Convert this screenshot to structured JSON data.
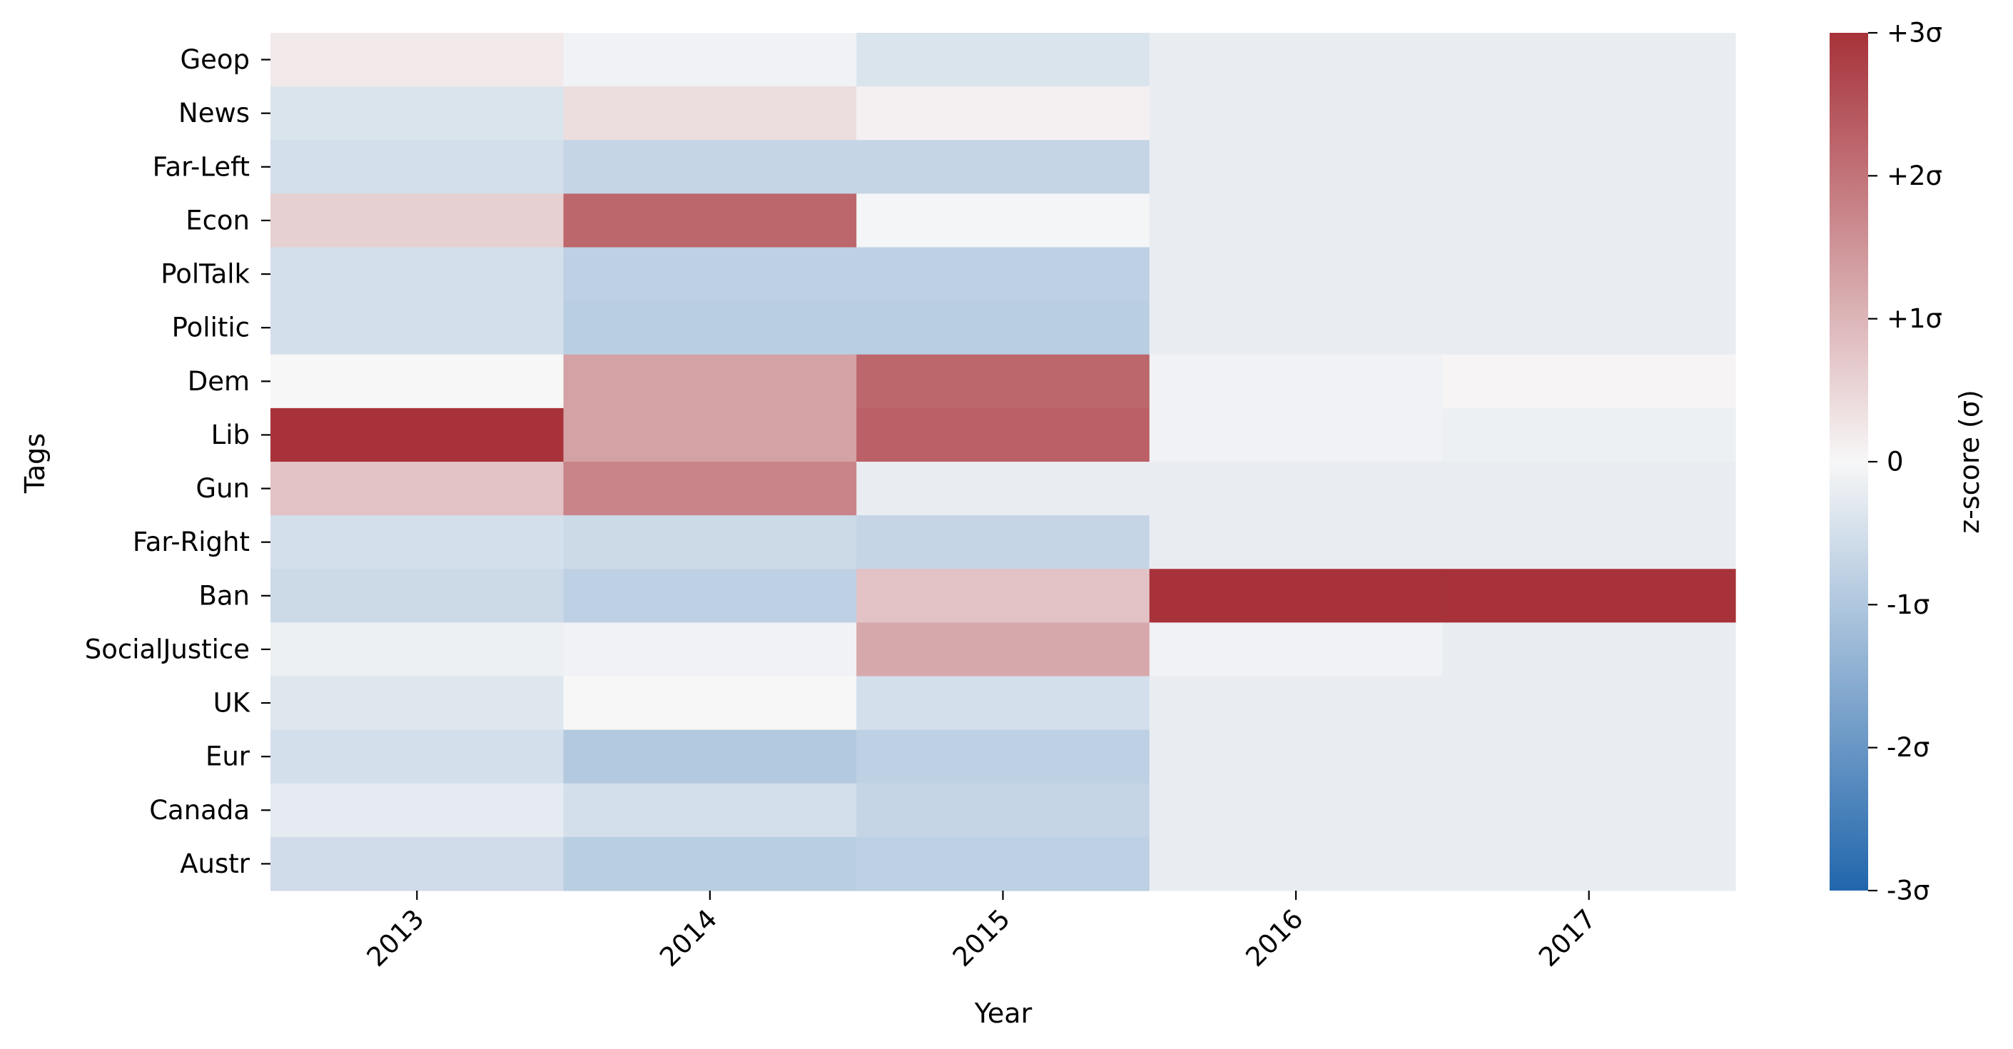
{
  "chart_data": {
    "type": "heatmap",
    "xlabel": "Year",
    "ylabel": "Tags",
    "x": [
      "2013",
      "2014",
      "2015",
      "2016",
      "2017"
    ],
    "y": [
      "Geop",
      "News",
      "Far-Left",
      "Econ",
      "PolTalk",
      "Politic",
      "Dem",
      "Lib",
      "Gun",
      "Far-Right",
      "Ban",
      "SocialJustice",
      "UK",
      "Eur",
      "Canada",
      "Austr"
    ],
    "z": [
      [
        0.2,
        -0.1,
        -0.4,
        -0.2,
        -0.2
      ],
      [
        -0.4,
        0.4,
        0.1,
        -0.2,
        -0.2
      ],
      [
        -0.5,
        -0.7,
        -0.7,
        -0.2,
        -0.2
      ],
      [
        0.6,
        2.2,
        -0.05,
        -0.2,
        -0.2
      ],
      [
        -0.5,
        -0.8,
        -0.8,
        -0.2,
        -0.2
      ],
      [
        -0.5,
        -0.85,
        -0.85,
        -0.2,
        -0.2
      ],
      [
        0.0,
        1.3,
        2.2,
        -0.1,
        0.05
      ],
      [
        3.0,
        1.3,
        2.3,
        -0.1,
        -0.15
      ],
      [
        0.8,
        1.75,
        -0.2,
        -0.2,
        -0.2
      ],
      [
        -0.5,
        -0.6,
        -0.7,
        -0.2,
        -0.2
      ],
      [
        -0.6,
        -0.8,
        0.8,
        3.0,
        3.0
      ],
      [
        -0.15,
        -0.1,
        1.2,
        -0.1,
        -0.2
      ],
      [
        -0.35,
        0.0,
        -0.5,
        -0.2,
        -0.2
      ],
      [
        -0.5,
        -0.95,
        -0.8,
        -0.2,
        -0.2
      ],
      [
        -0.25,
        -0.5,
        -0.7,
        -0.2,
        -0.2
      ],
      [
        -0.55,
        -0.85,
        -0.8,
        -0.2,
        -0.2
      ]
    ],
    "zlim": [
      -3,
      3
    ],
    "colormap": "diverging blue-white-red",
    "colors": {
      "low": "#2166ac",
      "mid": "#f7f7f7",
      "high": "#a7323a"
    },
    "colorbar": {
      "label": "z-score (σ)",
      "ticks": [
        3,
        2,
        1,
        0,
        -1,
        -2,
        -3
      ],
      "tick_labels": [
        "+3σ",
        "+2σ",
        "+1σ",
        "0",
        "-1σ",
        "-2σ",
        "-3σ"
      ]
    },
    "grid": false
  }
}
